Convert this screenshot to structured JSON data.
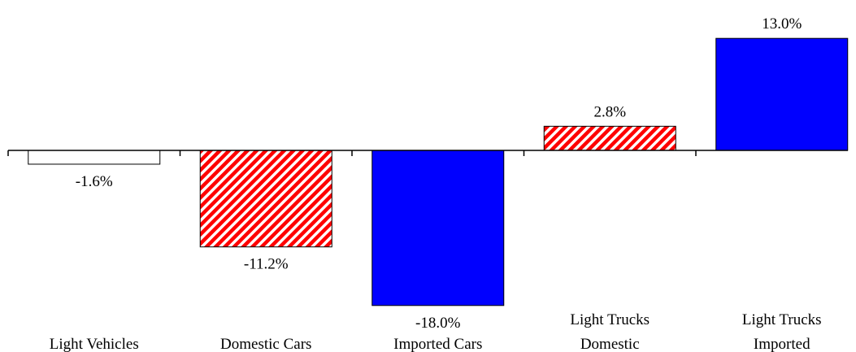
{
  "chart_data": {
    "type": "bar",
    "categories": [
      [
        "Light Vehicles"
      ],
      [
        "Domestic Cars"
      ],
      [
        "Imported Cars"
      ],
      [
        "Light Trucks",
        "Domestic"
      ],
      [
        "Light Trucks",
        "Imported"
      ]
    ],
    "values": [
      -1.6,
      -11.2,
      -18.0,
      2.8,
      13.0
    ],
    "value_labels": [
      "-1.6%",
      "-11.2%",
      "-18.0%",
      "2.8%",
      "13.0%"
    ],
    "fills": [
      "white",
      "red-white-diagonal-stripes",
      "blue",
      "red-white-diagonal-stripes",
      "blue"
    ],
    "colors": {
      "blue": "#0000ff",
      "red": "#ff0000",
      "white": "#ffffff",
      "axis": "#000000"
    },
    "title": "",
    "xlabel": "",
    "ylabel": "",
    "grid": false,
    "legend": "none"
  }
}
